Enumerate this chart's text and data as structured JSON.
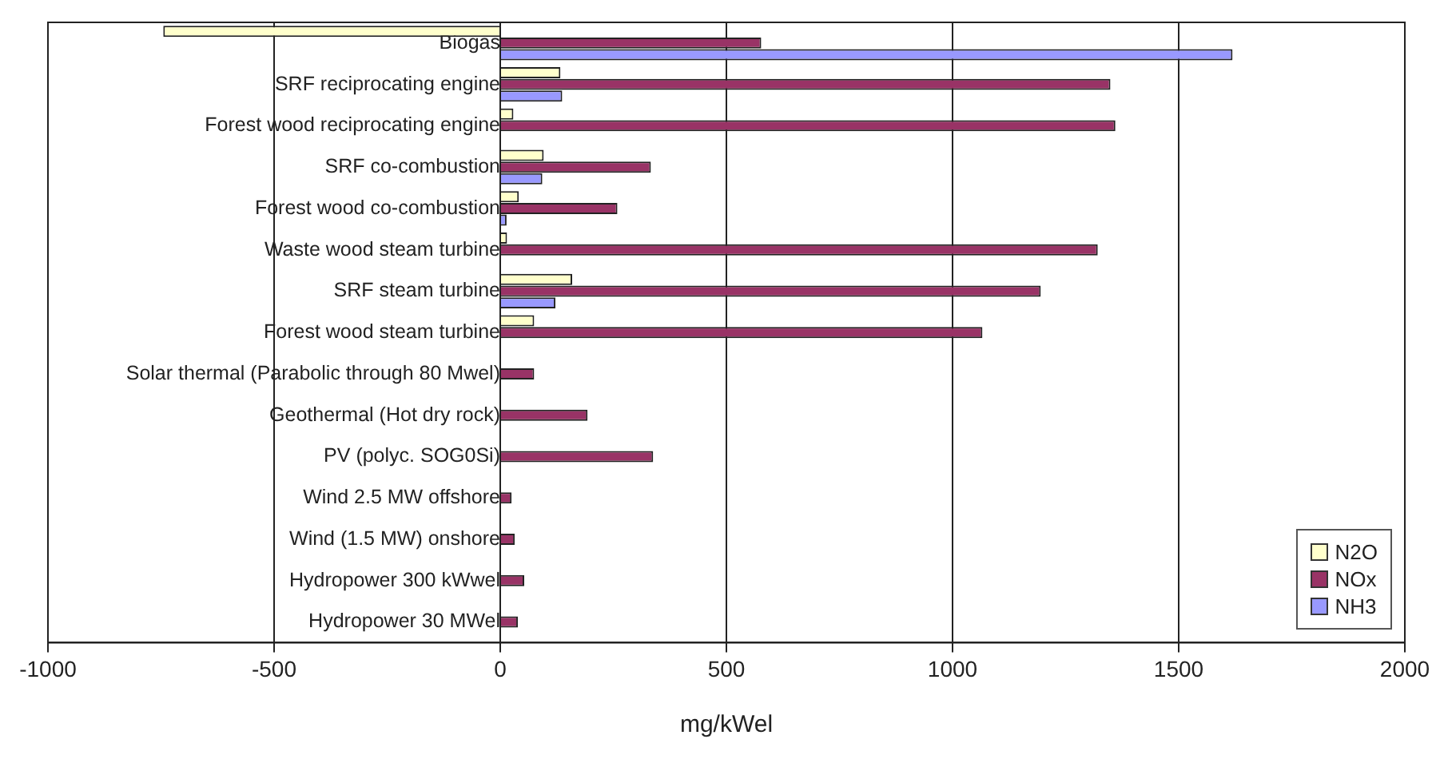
{
  "chart_data": {
    "type": "bar",
    "orientation": "horizontal",
    "xlabel": "mg/kWel",
    "categories": [
      "Biogas",
      "SRF reciprocating engine",
      "Forest wood reciprocating engine",
      "SRF co-combustion",
      "Forest wood co-combustion",
      "Waste wood steam turbine",
      "SRF steam turbine",
      "Forest wood steam turbine",
      "Solar thermal (Parabolic through 80 Mwel)",
      "Geothermal (Hot dry rock)",
      "PV (polyc. SOG0Si)",
      "Wind 2.5 MW offshore",
      "Wind (1.5 MW) onshore",
      "Hydropower 300 kWwel",
      "Hydropower 30 MWel"
    ],
    "series": [
      {
        "name": "N2O",
        "color": "#ffffcc",
        "values": [
          -745,
          133,
          29,
          96,
          41,
          15,
          159,
          75,
          null,
          null,
          null,
          null,
          null,
          null,
          null
        ]
      },
      {
        "name": "NOx",
        "color": "#993366",
        "values": [
          577,
          1349,
          1360,
          333,
          259,
          1321,
          1195,
          1066,
          75,
          193,
          338,
          25,
          32,
          53,
          39
        ]
      },
      {
        "name": "NH3",
        "color": "#9999ff",
        "values": [
          1619,
          137,
          null,
          93,
          14,
          null,
          122,
          null,
          null,
          null,
          null,
          null,
          null,
          null,
          null
        ]
      }
    ],
    "xlim": [
      -1000,
      2000
    ],
    "xticks": [
      -1000,
      -500,
      0,
      500,
      1000,
      1500,
      2000
    ],
    "grid": "x",
    "legend": "bottom right"
  }
}
